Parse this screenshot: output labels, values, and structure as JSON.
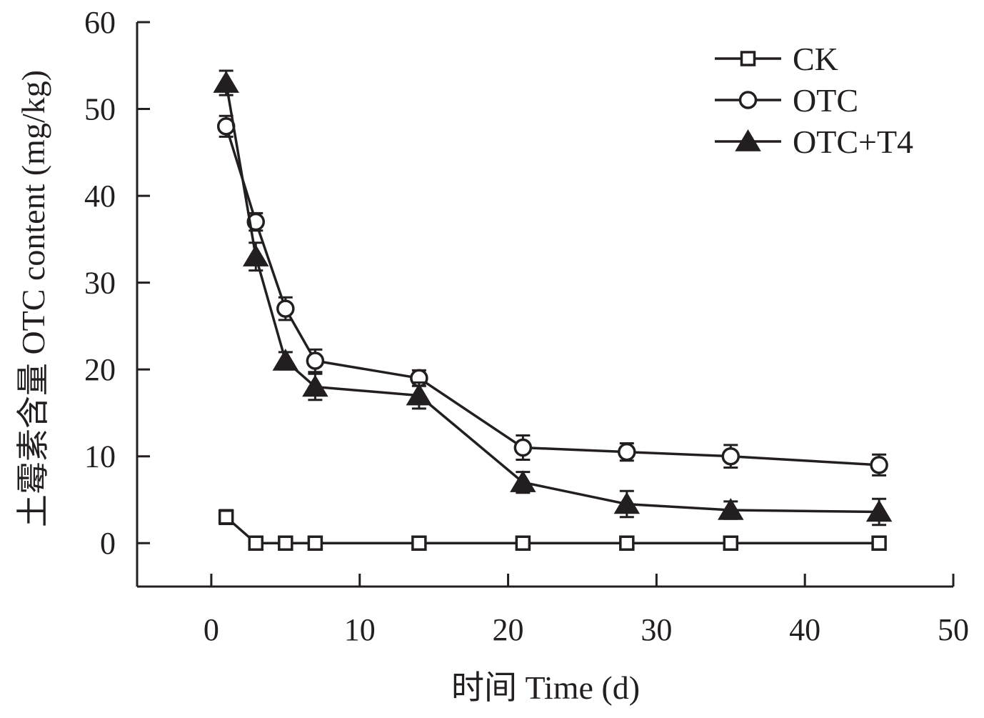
{
  "chart_data": {
    "type": "line",
    "xlabel": "时间 Time (d)",
    "ylabel": "土霉素含量 OTC content (mg/kg)",
    "xlim": [
      -5,
      50
    ],
    "ylim": [
      -5,
      60
    ],
    "xticks": [
      0,
      10,
      20,
      30,
      40,
      50
    ],
    "yticks": [
      0,
      10,
      20,
      30,
      40,
      50,
      60
    ],
    "xtick_labels": [
      "0",
      "10",
      "20",
      "30",
      "40",
      "50"
    ],
    "ytick_labels": [
      "0",
      "10",
      "20",
      "30",
      "40",
      "50",
      "60"
    ],
    "grid": false,
    "legend_position": "top-right",
    "x": [
      1,
      3,
      5,
      7,
      14,
      21,
      28,
      35,
      45
    ],
    "series": [
      {
        "name": "CK",
        "marker": "open-square",
        "values": [
          3,
          0,
          0,
          0,
          0,
          0,
          0,
          0,
          0
        ],
        "errors": [
          0.8,
          0.6,
          0.6,
          0.6,
          0.6,
          0.6,
          0.6,
          0.6,
          0.6
        ]
      },
      {
        "name": "OTC",
        "marker": "open-circle",
        "values": [
          48,
          37,
          27,
          21,
          19,
          11,
          10.5,
          10,
          9
        ],
        "errors": [
          1.2,
          1.0,
          1.3,
          1.3,
          0.9,
          1.4,
          1.0,
          1.3,
          1.2
        ]
      },
      {
        "name": "OTC+T4",
        "marker": "filled-triangle",
        "values": [
          53,
          33,
          21,
          18,
          17,
          7,
          4.5,
          3.8,
          3.6
        ],
        "errors": [
          1.4,
          1.6,
          1.0,
          1.5,
          1.5,
          1.2,
          1.5,
          1.0,
          1.5
        ]
      }
    ],
    "colors": {
      "line": "#231f20",
      "background": "#ffffff"
    }
  }
}
